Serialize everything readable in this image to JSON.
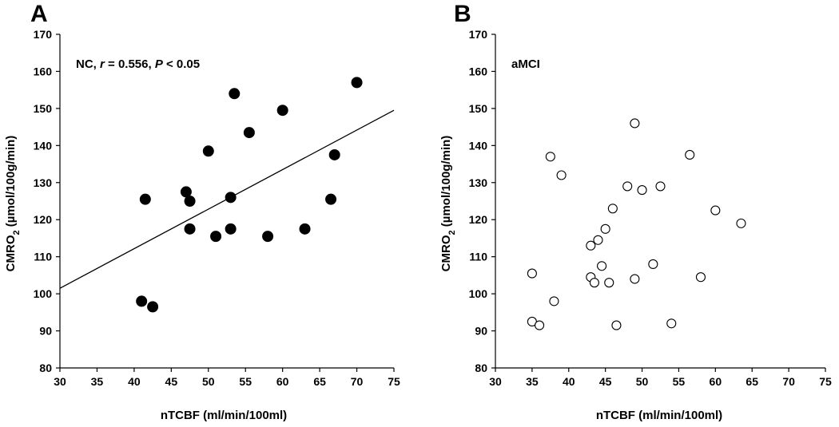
{
  "chart_data": [
    {
      "type": "scatter",
      "panel": "A",
      "xlabel": "nTCBF (ml/min/100ml)",
      "ylabel_main": "CMRO",
      "ylabel_sub": "2",
      "ylabel_rest": " (µmol/100g/min)",
      "annotation": {
        "group": "NC, ",
        "r_symbol": "r",
        "r_text": " = 0.556, ",
        "p_symbol": "P",
        "p_text": " < 0.05"
      },
      "xlim": [
        30,
        75
      ],
      "ylim": [
        80,
        170
      ],
      "xticks": [
        30,
        35,
        40,
        45,
        50,
        55,
        60,
        65,
        70,
        75
      ],
      "yticks": [
        80,
        90,
        100,
        110,
        120,
        130,
        140,
        150,
        160,
        170
      ],
      "marker": "filled",
      "regression": {
        "x": [
          30,
          75
        ],
        "y": [
          101.5,
          149.5
        ]
      },
      "points": [
        [
          41.0,
          98.0
        ],
        [
          42.5,
          96.5
        ],
        [
          41.5,
          125.5
        ],
        [
          47.0,
          127.5
        ],
        [
          47.5,
          125.0
        ],
        [
          47.5,
          117.5
        ],
        [
          50.0,
          138.5
        ],
        [
          51.0,
          115.5
        ],
        [
          53.0,
          126.0
        ],
        [
          53.0,
          117.5
        ],
        [
          53.5,
          154.0
        ],
        [
          55.5,
          143.5
        ],
        [
          58.0,
          115.5
        ],
        [
          60.0,
          149.5
        ],
        [
          63.0,
          117.5
        ],
        [
          66.5,
          125.5
        ],
        [
          67.0,
          137.5
        ],
        [
          70.0,
          157.0
        ]
      ]
    },
    {
      "type": "scatter",
      "panel": "B",
      "xlabel": "nTCBF (ml/min/100ml)",
      "ylabel_main": "CMRO",
      "ylabel_sub": "2",
      "ylabel_rest": " (µmol/100g/min)",
      "annotation": {
        "group": "aMCI"
      },
      "xlim": [
        30,
        75
      ],
      "ylim": [
        80,
        170
      ],
      "xticks": [
        30,
        35,
        40,
        45,
        50,
        55,
        60,
        65,
        70,
        75
      ],
      "yticks": [
        80,
        90,
        100,
        110,
        120,
        130,
        140,
        150,
        160,
        170
      ],
      "marker": "hollow",
      "points": [
        [
          35.0,
          92.5
        ],
        [
          35.0,
          105.5
        ],
        [
          36.0,
          91.5
        ],
        [
          37.5,
          137.0
        ],
        [
          38.0,
          98.0
        ],
        [
          39.0,
          132.0
        ],
        [
          43.0,
          113.0
        ],
        [
          43.0,
          104.5
        ],
        [
          43.5,
          103.0
        ],
        [
          44.0,
          114.5
        ],
        [
          44.5,
          107.5
        ],
        [
          45.0,
          117.5
        ],
        [
          45.5,
          103.0
        ],
        [
          46.0,
          123.0
        ],
        [
          46.5,
          91.5
        ],
        [
          48.0,
          129.0
        ],
        [
          49.0,
          146.0
        ],
        [
          49.0,
          104.0
        ],
        [
          50.0,
          128.0
        ],
        [
          51.5,
          108.0
        ],
        [
          52.5,
          129.0
        ],
        [
          54.0,
          92.0
        ],
        [
          56.5,
          137.5
        ],
        [
          58.0,
          104.5
        ],
        [
          60.0,
          122.5
        ],
        [
          63.5,
          119.0
        ]
      ]
    }
  ]
}
